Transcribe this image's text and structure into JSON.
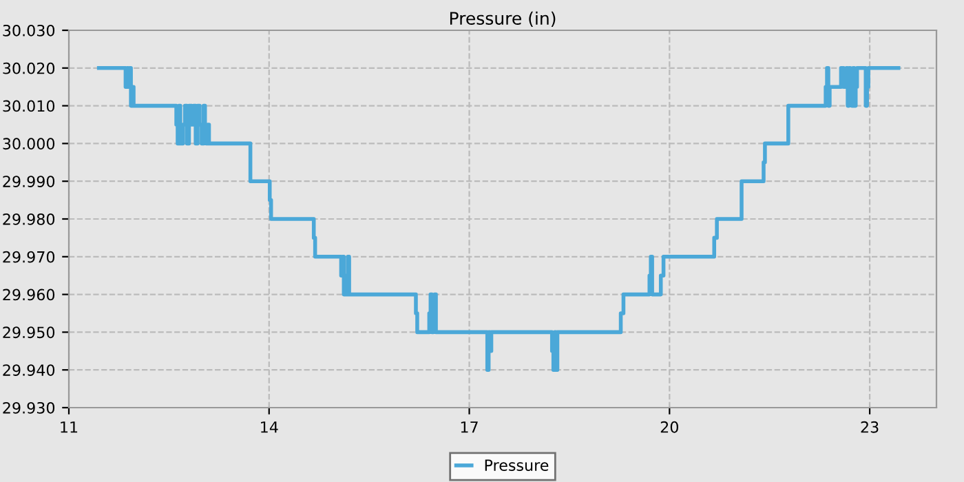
{
  "chart_data": {
    "type": "step",
    "title": "Pressure (in)",
    "series": [
      {
        "name": "Pressure",
        "color": "#4ba8d8",
        "x": [
          11.45,
          11.85,
          11.87,
          11.89,
          11.91,
          11.93,
          11.95,
          11.97,
          12.61,
          12.63,
          12.65,
          12.67,
          12.71,
          12.74,
          12.77,
          12.8,
          12.84,
          12.87,
          12.9,
          12.93,
          12.96,
          12.99,
          13.02,
          13.04,
          13.06,
          13.08,
          13.1,
          13.72,
          14.01,
          14.03,
          14.67,
          14.69,
          15.08,
          15.1,
          15.12,
          15.14,
          15.16,
          15.18,
          15.2,
          16.2,
          16.22,
          16.4,
          16.42,
          16.44,
          16.46,
          16.48,
          16.5,
          17.27,
          17.29,
          17.31,
          17.33,
          18.24,
          18.26,
          18.28,
          18.3,
          18.32,
          19.27,
          19.31,
          19.35,
          19.7,
          19.72,
          19.74,
          19.87,
          19.91,
          19.95,
          20.67,
          20.71,
          20.75,
          21.08,
          21.41,
          21.43,
          21.78,
          22.34,
          22.36,
          22.38,
          22.4,
          22.57,
          22.61,
          22.65,
          22.67,
          22.69,
          22.71,
          22.73,
          22.75,
          22.77,
          22.79,
          22.81,
          22.94,
          22.96,
          22.98,
          23.02,
          23.43
        ],
        "values": [
          30.02,
          30.015,
          30.02,
          30.015,
          30.02,
          30.01,
          30.015,
          30.01,
          30.005,
          30.0,
          30.01,
          30.0,
          30.005,
          30.01,
          30.0,
          30.01,
          30.005,
          30.01,
          30.0,
          30.01,
          30.005,
          30.0,
          30.01,
          30.005,
          30.0,
          30.005,
          30.0,
          29.99,
          29.985,
          29.98,
          29.975,
          29.97,
          29.965,
          29.97,
          29.96,
          29.965,
          29.96,
          29.97,
          29.96,
          29.955,
          29.95,
          29.955,
          29.96,
          29.95,
          29.955,
          29.96,
          29.95,
          29.94,
          29.95,
          29.945,
          29.95,
          29.945,
          29.94,
          29.95,
          29.94,
          29.95,
          29.955,
          29.96,
          29.96,
          29.965,
          29.97,
          29.96,
          29.965,
          29.97,
          29.97,
          29.975,
          29.98,
          29.98,
          29.99,
          29.995,
          30.0,
          30.01,
          30.015,
          30.02,
          30.01,
          30.015,
          30.02,
          30.015,
          30.02,
          30.01,
          30.02,
          30.015,
          30.01,
          30.02,
          30.01,
          30.015,
          30.02,
          30.01,
          30.015,
          30.02,
          30.02,
          30.02
        ]
      }
    ],
    "xlim": [
      11,
      24
    ],
    "xticks": [
      11,
      14,
      17,
      20,
      23
    ],
    "ylim": [
      29.93,
      30.03
    ],
    "yticks": [
      {
        "value": 29.93,
        "label": "29.930"
      },
      {
        "value": 29.94,
        "label": "29.940"
      },
      {
        "value": 29.95,
        "label": "29.950"
      },
      {
        "value": 29.96,
        "label": "29.960"
      },
      {
        "value": 29.97,
        "label": "29.970"
      },
      {
        "value": 29.98,
        "label": "29.980"
      },
      {
        "value": 29.99,
        "label": "29.990"
      },
      {
        "value": 30.0,
        "label": "30.000"
      },
      {
        "value": 30.01,
        "label": "30.010"
      },
      {
        "value": 30.02,
        "label": "30.020"
      },
      {
        "value": 30.03,
        "label": "30.030"
      }
    ],
    "grid": true,
    "legend": "bottom",
    "line_style": "solid"
  }
}
